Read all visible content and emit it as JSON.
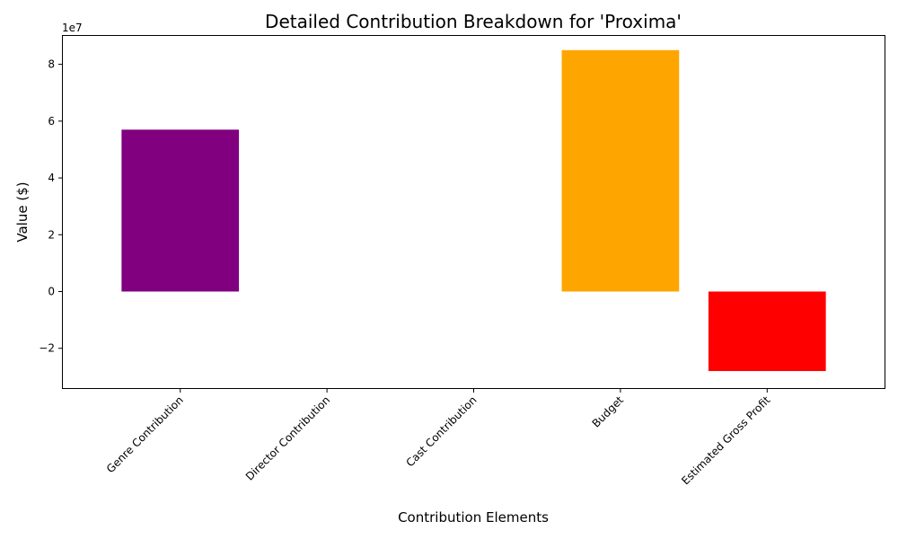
{
  "chart_data": {
    "type": "bar",
    "title": "Detailed Contribution Breakdown for 'Proxima'",
    "xlabel": "Contribution Elements",
    "ylabel": "Value ($)",
    "y_offset_label": "1e7",
    "categories": [
      "Genre Contribution",
      "Director Contribution",
      "Cast Contribution",
      "Budget",
      "Estimated Gross Profit"
    ],
    "values": [
      57000000,
      0,
      0,
      85000000,
      -28000000
    ],
    "colors": [
      "#800080",
      "#0000ff",
      "#008000",
      "#ffa500",
      "#ff0000"
    ],
    "ylim": [
      -34000000,
      90000000
    ],
    "yticks": [
      -20000000,
      0,
      20000000,
      40000000,
      60000000,
      80000000
    ],
    "ytick_labels": [
      "−2",
      "0",
      "2",
      "4",
      "6",
      "8"
    ],
    "grid": false,
    "legend": "none"
  }
}
